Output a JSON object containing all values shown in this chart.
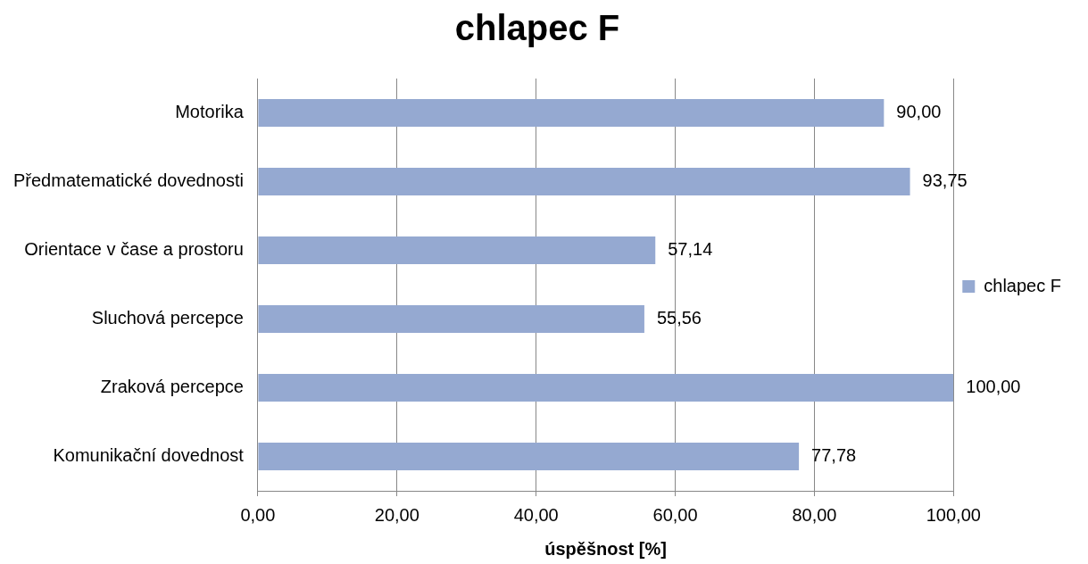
{
  "chart_data": {
    "type": "bar",
    "orientation": "horizontal",
    "title": "chlapec F",
    "xlabel": "úspěšnost [%]",
    "categories": [
      "Motorika",
      "Předmatematické dovednosti",
      "Orientace v čase a prostoru",
      "Sluchová percepce",
      "Zraková percepce",
      "Komunikační dovednost"
    ],
    "series": [
      {
        "name": "chlapec F",
        "color": "#95a9d1",
        "values": [
          90.0,
          93.75,
          57.14,
          55.56,
          100.0,
          77.78
        ],
        "value_labels": [
          "90,00",
          "93,75",
          "57,14",
          "55,56",
          "100,00",
          "77,78"
        ]
      }
    ],
    "xlim": [
      0,
      100
    ],
    "xticks": [
      {
        "value": 0,
        "label": "0,00"
      },
      {
        "value": 20,
        "label": "20,00"
      },
      {
        "value": 40,
        "label": "40,00"
      },
      {
        "value": 60,
        "label": "60,00"
      },
      {
        "value": 80,
        "label": "80,00"
      },
      {
        "value": 100,
        "label": "100,00"
      }
    ],
    "grid": "x",
    "legend": "right"
  }
}
